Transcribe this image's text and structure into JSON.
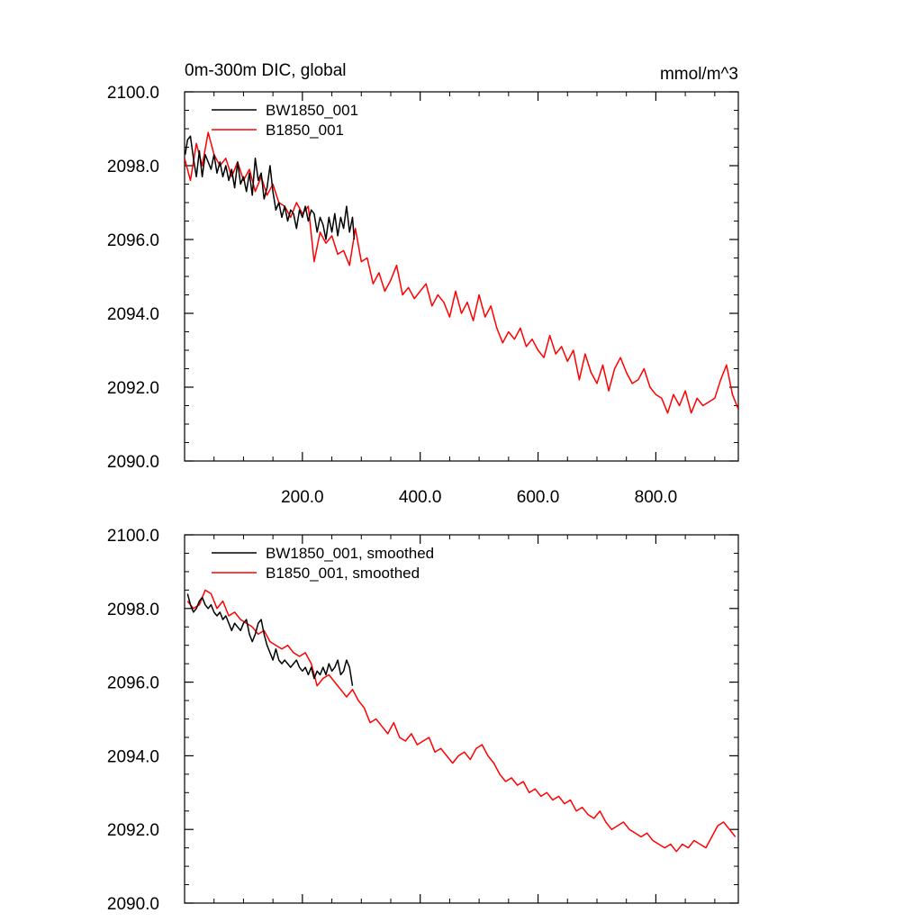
{
  "chart_data": [
    {
      "type": "line",
      "title": "0m-300m DIC, global",
      "units": "mmol/m^3",
      "xlim": [
        0,
        940
      ],
      "ylim": [
        2090,
        2100
      ],
      "x_ticks": [
        200,
        400,
        600,
        800
      ],
      "x_tick_labels": [
        "200.0",
        "400.0",
        "600.0",
        "800.0"
      ],
      "y_ticks": [
        2090,
        2092,
        2094,
        2096,
        2098,
        2100
      ],
      "y_tick_labels": [
        "2090.0",
        "2092.0",
        "2094.0",
        "2096.0",
        "2098.0",
        "2100.0"
      ],
      "legend": "top-left",
      "series": [
        {
          "name": "BW1850_001",
          "color": "#000000",
          "x": [
            1,
            5,
            10,
            15,
            20,
            25,
            30,
            35,
            40,
            45,
            50,
            55,
            60,
            65,
            70,
            75,
            80,
            85,
            90,
            95,
            100,
            105,
            110,
            115,
            120,
            125,
            130,
            135,
            140,
            145,
            150,
            155,
            160,
            165,
            170,
            175,
            180,
            185,
            190,
            195,
            200,
            205,
            210,
            215,
            220,
            225,
            230,
            235,
            240,
            245,
            250,
            255,
            260,
            265,
            270,
            275,
            280,
            285,
            288
          ],
          "y": [
            2098.3,
            2098.7,
            2098.8,
            2098.2,
            2097.7,
            2098.4,
            2097.7,
            2098.3,
            2098.1,
            2097.9,
            2098.3,
            2097.8,
            2098.1,
            2097.7,
            2098.0,
            2097.6,
            2097.9,
            2097.4,
            2098.1,
            2097.5,
            2097.7,
            2097.3,
            2097.8,
            2097.2,
            2098.2,
            2097.6,
            2097.8,
            2097.1,
            2097.4,
            2098.0,
            2097.3,
            2096.8,
            2097.0,
            2096.6,
            2096.9,
            2096.5,
            2096.8,
            2096.7,
            2096.3,
            2096.8,
            2096.6,
            2096.9,
            2096.5,
            2096.8,
            2096.7,
            2096.2,
            2096.6,
            2096.4,
            2096.0,
            2096.6,
            2096.2,
            2096.7,
            2096.1,
            2096.6,
            2096.3,
            2096.9,
            2096.2,
            2096.6,
            2096.0
          ]
        },
        {
          "name": "B1850_001",
          "color": "#ff0000",
          "x": [
            0,
            10,
            20,
            30,
            40,
            50,
            60,
            70,
            80,
            90,
            100,
            110,
            120,
            130,
            140,
            150,
            160,
            170,
            180,
            190,
            200,
            210,
            220,
            230,
            240,
            250,
            260,
            270,
            280,
            290,
            300,
            310,
            320,
            330,
            340,
            350,
            360,
            370,
            380,
            390,
            400,
            410,
            420,
            430,
            440,
            450,
            460,
            470,
            480,
            490,
            500,
            510,
            520,
            530,
            540,
            550,
            560,
            570,
            580,
            590,
            600,
            610,
            620,
            630,
            640,
            650,
            660,
            670,
            680,
            690,
            700,
            710,
            720,
            730,
            740,
            750,
            760,
            770,
            780,
            790,
            800,
            810,
            820,
            830,
            840,
            850,
            860,
            870,
            880,
            890,
            900,
            910,
            920,
            930,
            940
          ],
          "y": [
            2098.2,
            2097.6,
            2098.6,
            2098.0,
            2098.9,
            2098.3,
            2098.0,
            2098.2,
            2097.7,
            2098.1,
            2097.6,
            2097.9,
            2097.3,
            2097.7,
            2097.2,
            2097.5,
            2097.0,
            2096.9,
            2096.6,
            2097.0,
            2096.7,
            2096.9,
            2095.4,
            2096.2,
            2095.9,
            2096.1,
            2095.6,
            2095.7,
            2095.3,
            2096.3,
            2095.4,
            2095.5,
            2094.8,
            2095.1,
            2094.6,
            2094.9,
            2095.3,
            2094.5,
            2094.7,
            2094.4,
            2094.6,
            2094.8,
            2094.2,
            2094.5,
            2094.3,
            2093.9,
            2094.6,
            2094.0,
            2094.3,
            2093.8,
            2094.5,
            2093.9,
            2094.2,
            2093.6,
            2093.2,
            2093.5,
            2093.3,
            2093.6,
            2093.1,
            2093.3,
            2093.0,
            2092.8,
            2093.4,
            2092.9,
            2093.1,
            2092.7,
            2093.0,
            2092.2,
            2092.9,
            2092.4,
            2092.1,
            2092.6,
            2091.9,
            2092.5,
            2092.8,
            2092.4,
            2092.1,
            2092.2,
            2092.5,
            2092.0,
            2091.8,
            2091.7,
            2091.3,
            2091.8,
            2091.5,
            2091.9,
            2091.3,
            2091.7,
            2091.5,
            2091.6,
            2091.7,
            2092.2,
            2092.6,
            2091.8,
            2091.4
          ]
        }
      ]
    },
    {
      "type": "line",
      "xlim": [
        0,
        940
      ],
      "ylim": [
        2090,
        2100
      ],
      "x_ticks": [
        200,
        400,
        600,
        800
      ],
      "y_ticks": [
        2090,
        2092,
        2094,
        2096,
        2098,
        2100
      ],
      "y_tick_labels": [
        "2090.0",
        "2092.0",
        "2094.0",
        "2096.0",
        "2098.0",
        "2100.0"
      ],
      "legend": "top-left",
      "series": [
        {
          "name": "BW1850_001, smoothed",
          "color": "#000000",
          "x": [
            5,
            10,
            15,
            20,
            25,
            30,
            35,
            40,
            45,
            50,
            55,
            60,
            65,
            70,
            75,
            80,
            85,
            90,
            95,
            100,
            105,
            110,
            115,
            120,
            125,
            130,
            135,
            140,
            145,
            150,
            155,
            160,
            165,
            170,
            175,
            180,
            185,
            190,
            195,
            200,
            205,
            210,
            215,
            220,
            225,
            230,
            235,
            240,
            245,
            250,
            255,
            260,
            265,
            270,
            275,
            280,
            285
          ],
          "y": [
            2098.4,
            2098.1,
            2097.9,
            2098.0,
            2098.2,
            2098.3,
            2098.1,
            2098.0,
            2098.1,
            2097.9,
            2097.8,
            2097.9,
            2097.7,
            2097.8,
            2097.6,
            2097.4,
            2097.6,
            2097.5,
            2097.4,
            2097.6,
            2097.7,
            2097.3,
            2097.1,
            2097.3,
            2097.6,
            2097.7,
            2097.3,
            2097.0,
            2096.8,
            2096.6,
            2096.9,
            2096.6,
            2096.5,
            2096.6,
            2096.5,
            2096.4,
            2096.5,
            2096.6,
            2096.4,
            2096.3,
            2096.4,
            2096.2,
            2096.4,
            2096.1,
            2096.3,
            2096.2,
            2096.4,
            2096.2,
            2096.5,
            2096.3,
            2096.4,
            2096.6,
            2096.2,
            2096.3,
            2096.6,
            2096.4,
            2095.9
          ]
        },
        {
          "name": "B1850_001, smoothed",
          "color": "#ff0000",
          "x": [
            5,
            15,
            25,
            35,
            45,
            55,
            65,
            75,
            85,
            95,
            105,
            115,
            125,
            135,
            145,
            155,
            165,
            175,
            185,
            195,
            205,
            215,
            225,
            235,
            245,
            255,
            265,
            275,
            285,
            295,
            305,
            315,
            325,
            335,
            345,
            355,
            365,
            375,
            385,
            395,
            405,
            415,
            425,
            435,
            445,
            455,
            465,
            475,
            485,
            495,
            505,
            515,
            525,
            535,
            545,
            555,
            565,
            575,
            585,
            595,
            605,
            615,
            625,
            635,
            645,
            655,
            665,
            675,
            685,
            695,
            705,
            715,
            725,
            735,
            745,
            755,
            765,
            775,
            785,
            795,
            805,
            815,
            825,
            835,
            845,
            855,
            865,
            875,
            885,
            895,
            905,
            915,
            925,
            935
          ],
          "y": [
            2098.2,
            2098.0,
            2098.1,
            2098.5,
            2098.4,
            2098.0,
            2098.2,
            2097.8,
            2097.9,
            2097.7,
            2097.6,
            2097.5,
            2097.3,
            2097.4,
            2097.1,
            2097.0,
            2096.9,
            2097.0,
            2096.8,
            2096.7,
            2096.8,
            2096.5,
            2095.9,
            2096.1,
            2096.2,
            2096.0,
            2095.8,
            2095.6,
            2095.8,
            2095.5,
            2095.3,
            2094.9,
            2095.0,
            2094.8,
            2094.6,
            2094.9,
            2094.5,
            2094.4,
            2094.6,
            2094.3,
            2094.4,
            2094.5,
            2094.1,
            2094.2,
            2094.0,
            2093.8,
            2094.0,
            2094.1,
            2093.9,
            2094.2,
            2094.3,
            2094.0,
            2093.8,
            2093.5,
            2093.3,
            2093.4,
            2093.2,
            2093.3,
            2093.0,
            2093.1,
            2092.9,
            2093.0,
            2092.8,
            2092.9,
            2092.7,
            2092.8,
            2092.5,
            2092.6,
            2092.4,
            2092.3,
            2092.5,
            2092.2,
            2092.0,
            2092.1,
            2092.2,
            2092.0,
            2091.9,
            2091.8,
            2091.9,
            2091.7,
            2091.6,
            2091.5,
            2091.6,
            2091.4,
            2091.6,
            2091.5,
            2091.7,
            2091.6,
            2091.5,
            2091.8,
            2092.1,
            2092.2,
            2092.0,
            2091.8
          ]
        }
      ]
    }
  ]
}
